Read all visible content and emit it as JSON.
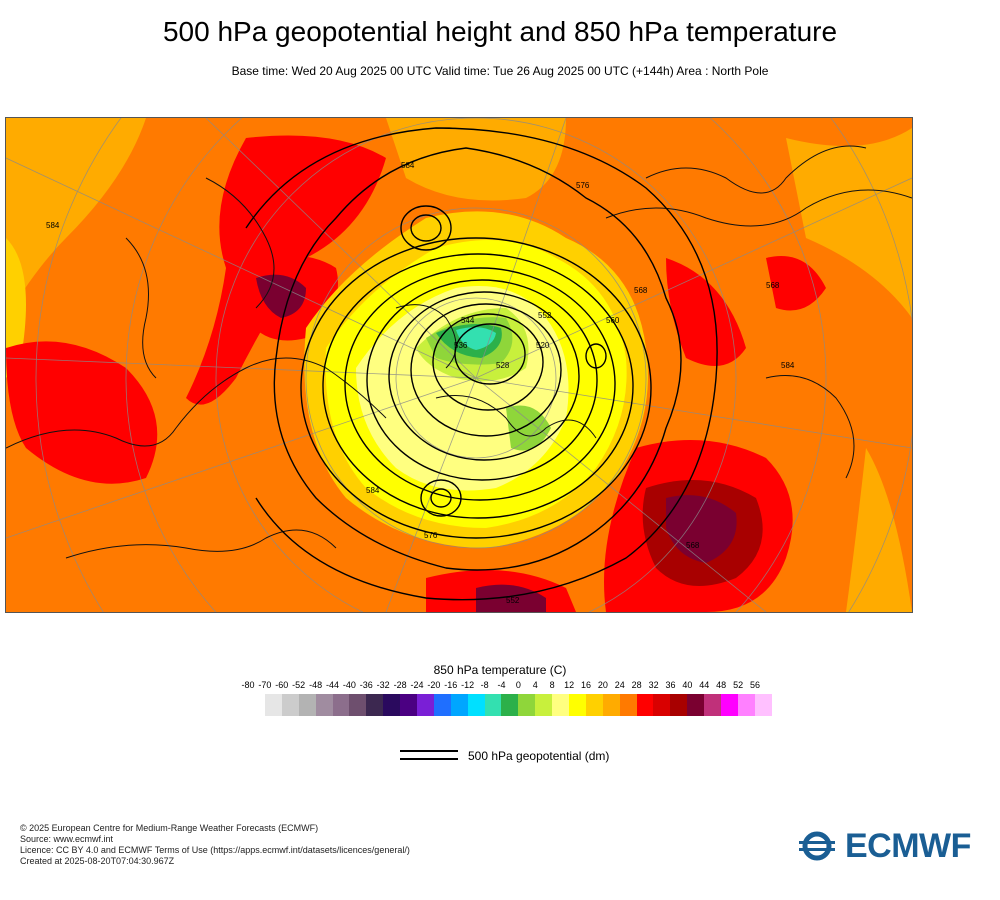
{
  "header": {
    "title": "500 hPa geopotential height and 850 hPa temperature",
    "subtitle": "Base time: Wed 20 Aug 2025 00 UTC Valid time: Tue 26 Aug 2025 00 UTC (+144h) Area : North Pole"
  },
  "map": {
    "area": "North Pole",
    "contour_labels": [
      "584",
      "576",
      "568",
      "560",
      "552",
      "544",
      "536",
      "528",
      "520",
      "584",
      "576",
      "568",
      "552",
      "584",
      "568",
      "584"
    ]
  },
  "legend": {
    "title": "850 hPa temperature (C)",
    "ticks": [
      "-80",
      "-70",
      "-60",
      "-52",
      "-48",
      "-44",
      "-40",
      "-36",
      "-32",
      "-28",
      "-24",
      "-20",
      "-16",
      "-12",
      "-8",
      "-4",
      "0",
      "4",
      "8",
      "12",
      "16",
      "20",
      "24",
      "28",
      "32",
      "36",
      "40",
      "44",
      "48",
      "52",
      "56"
    ],
    "colors": [
      "#e6e6e6",
      "#cccccc",
      "#b3b3b3",
      "#a08ca0",
      "#8c6e8c",
      "#6e4f6e",
      "#3c2850",
      "#2a0a5e",
      "#4b0082",
      "#7a1fd6",
      "#1f6fff",
      "#00a6ff",
      "#00e0ff",
      "#33e0b0",
      "#2cb04a",
      "#8fd63a",
      "#c8f03c",
      "#ffff80",
      "#ffff00",
      "#ffd000",
      "#ffab00",
      "#ff7a00",
      "#ff0000",
      "#d90000",
      "#a80000",
      "#7a0030",
      "#c0307a",
      "#ff00ff",
      "#ff80ff",
      "#ffc0ff",
      "#e8d8e8",
      "#e6e6e6"
    ],
    "geopotential_label": "500 hPa geopotential (dm)"
  },
  "footer": {
    "lines": [
      "© 2025 European Centre for Medium-Range Weather Forecasts (ECMWF)",
      "Source: www.ecmwf.int",
      "Licence: CC BY 4.0 and ECMWF Terms of Use (https://apps.ecmwf.int/datasets/licences/general/)",
      "Created at 2025-08-20T07:04:30.967Z"
    ]
  },
  "logo": {
    "text": "ECMWF",
    "color": "#1a5e94"
  }
}
